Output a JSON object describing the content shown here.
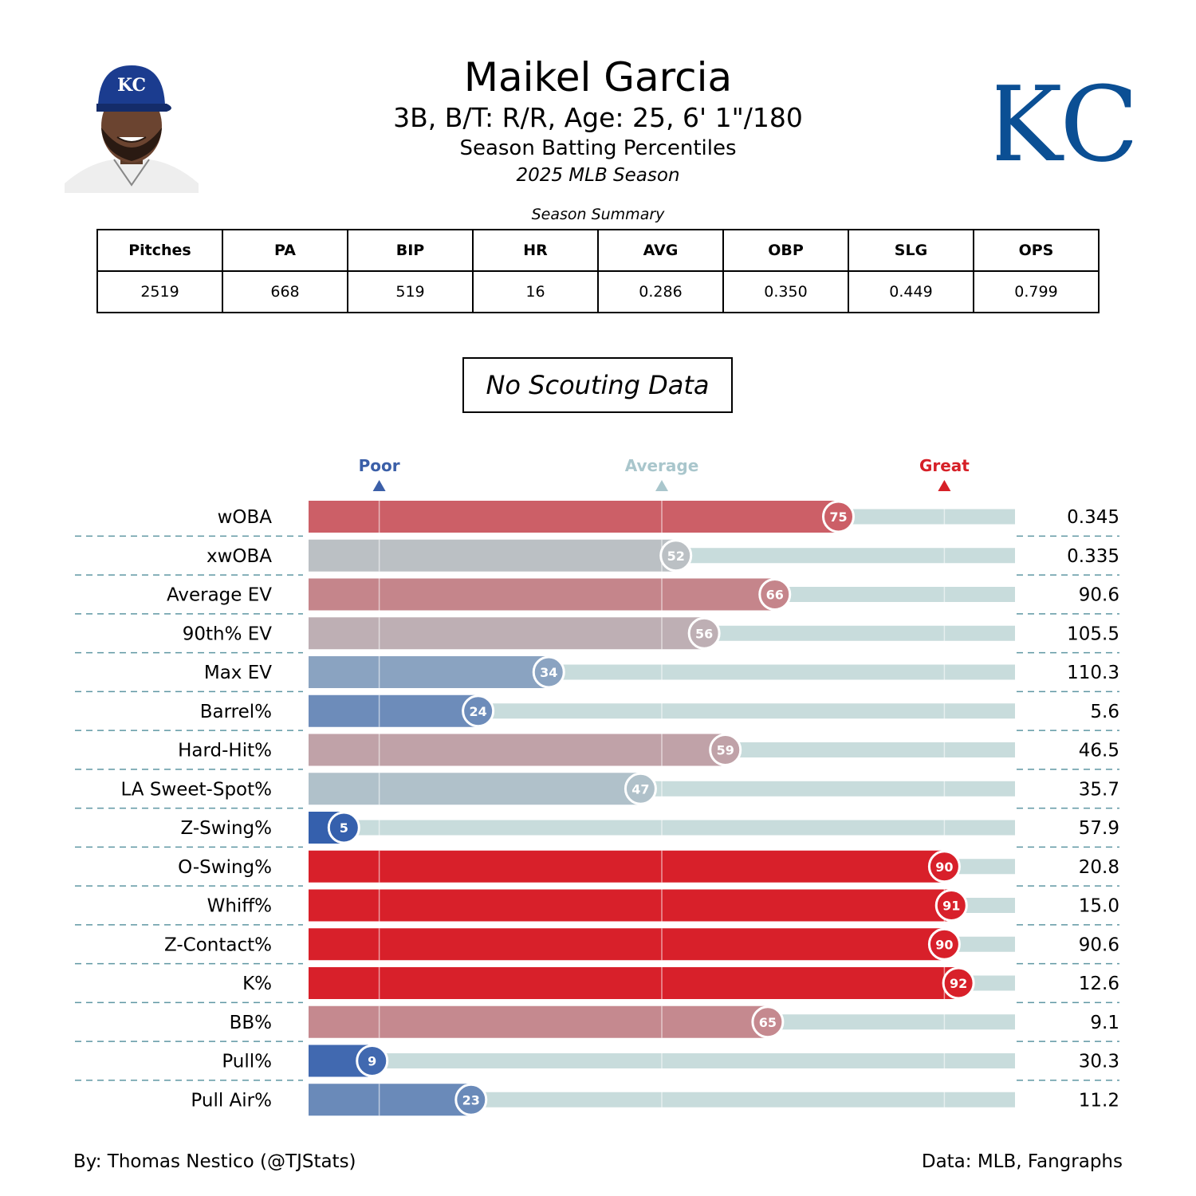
{
  "header": {
    "player_name": "Maikel Garcia",
    "bio_line": "3B, B/T: R/R, Age: 25, 6' 1\"/180",
    "report_title": "Season Batting Percentiles",
    "season": "2025 MLB Season",
    "team_logo_text": "KC"
  },
  "summary": {
    "caption": "Season Summary",
    "headers": [
      "Pitches",
      "PA",
      "BIP",
      "HR",
      "AVG",
      "OBP",
      "SLG",
      "OPS"
    ],
    "values": [
      "2519",
      "668",
      "519",
      "16",
      "0.286",
      "0.350",
      "0.449",
      "0.799"
    ]
  },
  "scouting": {
    "text": "No Scouting Data"
  },
  "chart_data": {
    "type": "bar",
    "orientation": "horizontal",
    "xlim": [
      0,
      100
    ],
    "reference_lines": [
      10,
      50,
      90
    ],
    "reference_labels": [
      {
        "label": "Poor",
        "value": 10,
        "color": "#3b5fa8"
      },
      {
        "label": "Average",
        "value": 50,
        "color": "#a9c6cc"
      },
      {
        "label": "Great",
        "value": 90,
        "color": "#d62027"
      }
    ],
    "categories": [
      "wOBA",
      "xwOBA",
      "Average EV",
      "90th% EV",
      "Max EV",
      "Barrel%",
      "Hard-Hit%",
      "LA Sweet-Spot%",
      "Z-Swing%",
      "O-Swing%",
      "Whiff%",
      "Z-Contact%",
      "K%",
      "BB%",
      "Pull%",
      "Pull Air%"
    ],
    "percentiles": [
      75,
      52,
      66,
      56,
      34,
      24,
      59,
      47,
      5,
      90,
      91,
      90,
      92,
      65,
      9,
      23
    ],
    "stat_values": [
      "0.345",
      "0.335",
      "90.6",
      "105.5",
      "110.3",
      "5.6",
      "46.5",
      "35.7",
      "57.9",
      "20.8",
      "15.0",
      "90.6",
      "12.6",
      "9.1",
      "30.3",
      "11.2"
    ],
    "colors": {
      "track": "#c8dcdc",
      "low": "#3560ad",
      "mid": "#b9c8cc",
      "high": "#d8202a",
      "divider": "#5f97a3"
    }
  },
  "footer": {
    "credit": "By: Thomas Nestico (@TJStats)",
    "source": "Data: MLB, Fangraphs"
  }
}
